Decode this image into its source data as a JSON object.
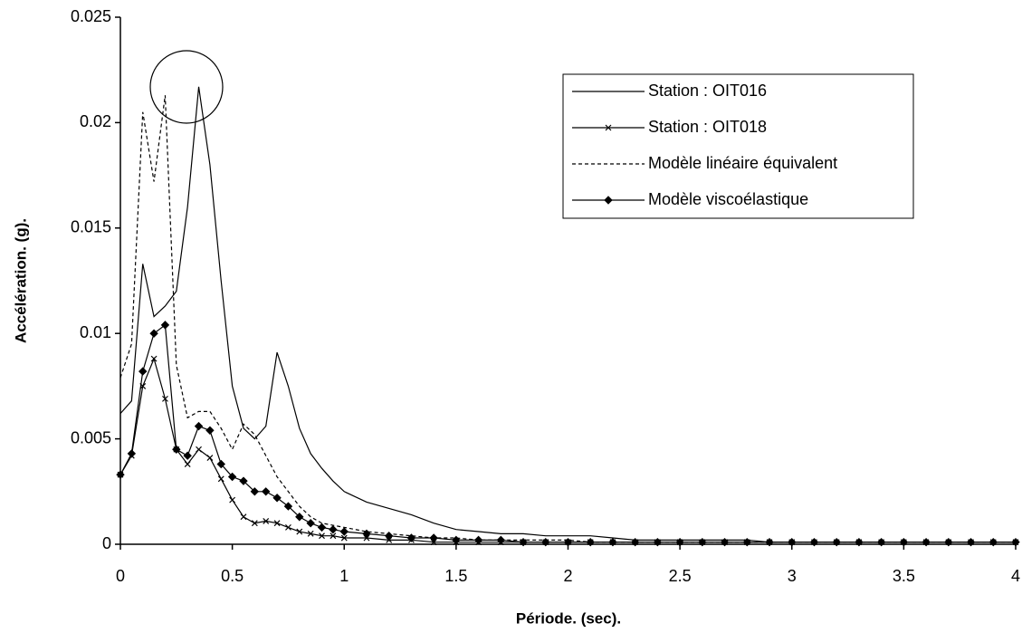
{
  "chart_data": {
    "type": "line",
    "xlabel": "Période. (sec).",
    "ylabel": "Accélération. (g).",
    "x": [
      0,
      0.05,
      0.1,
      0.15,
      0.2,
      0.25,
      0.3,
      0.35,
      0.4,
      0.45,
      0.5,
      0.55,
      0.6,
      0.65,
      0.7,
      0.75,
      0.8,
      0.85,
      0.9,
      0.95,
      1.0,
      1.1,
      1.2,
      1.3,
      1.4,
      1.5,
      1.6,
      1.7,
      1.8,
      1.9,
      2.0,
      2.1,
      2.2,
      2.3,
      2.4,
      2.5,
      2.6,
      2.7,
      2.8,
      2.9,
      3.0,
      3.1,
      3.2,
      3.3,
      3.4,
      3.5,
      3.6,
      3.7,
      3.8,
      3.9,
      4.0
    ],
    "xlim": [
      0,
      4
    ],
    "xticks": [
      0,
      0.5,
      1,
      1.5,
      2,
      2.5,
      3,
      3.5,
      4
    ],
    "ylim": [
      0,
      0.025
    ],
    "yticks": [
      0,
      0.005,
      0.01,
      0.015,
      0.02,
      0.025
    ],
    "grid": false,
    "legend": "upper right",
    "series": [
      {
        "name": "Station : OIT016",
        "color": "#000000",
        "line_style": "solid",
        "marker": "none",
        "values": [
          0.0062,
          0.0068,
          0.0133,
          0.0108,
          0.0113,
          0.012,
          0.016,
          0.0217,
          0.018,
          0.0125,
          0.0075,
          0.0055,
          0.005,
          0.0056,
          0.0091,
          0.0075,
          0.0055,
          0.0043,
          0.0036,
          0.003,
          0.0025,
          0.002,
          0.0017,
          0.0014,
          0.001,
          0.0007,
          0.0006,
          0.0005,
          0.0005,
          0.0004,
          0.0004,
          0.0004,
          0.0003,
          0.0002,
          0.0002,
          0.0002,
          0.0002,
          0.0002,
          0.0002,
          0.0001,
          0.0001,
          0.0001,
          0.0001,
          0.0001,
          0.0001,
          0.0001,
          0.0001,
          0.0001,
          0.0001,
          0.0001,
          0.0001
        ]
      },
      {
        "name": "Station : OIT018",
        "color": "#000000",
        "line_style": "solid",
        "marker": "x",
        "values": [
          0.0033,
          0.0042,
          0.0075,
          0.0088,
          0.0069,
          0.0045,
          0.0038,
          0.0045,
          0.0041,
          0.0031,
          0.0021,
          0.0013,
          0.001,
          0.0011,
          0.001,
          0.0008,
          0.0006,
          0.0005,
          0.0004,
          0.0004,
          0.0003,
          0.0003,
          0.0002,
          0.0002,
          0.0001,
          0.0001,
          0.0001,
          0.0001,
          0.0001,
          0.0001,
          0.0001,
          0.0001,
          0.0001,
          0.0001,
          0.0001,
          0.0001,
          0.0001,
          0.0001,
          0.0001,
          0.0001,
          0.0001,
          0.0001,
          0.0001,
          0.0001,
          0.0001,
          0.0001,
          0.0001,
          0.0001,
          0.0001,
          0.0001,
          0.0001
        ]
      },
      {
        "name": "Modèle linéaire équivalent",
        "color": "#000000",
        "line_style": "dashed",
        "marker": "none",
        "values": [
          0.0079,
          0.0095,
          0.0205,
          0.0172,
          0.0213,
          0.0085,
          0.006,
          0.0063,
          0.0063,
          0.0055,
          0.0045,
          0.0057,
          0.0052,
          0.0042,
          0.0032,
          0.0025,
          0.0018,
          0.0013,
          0.001,
          0.0009,
          0.0008,
          0.0006,
          0.0005,
          0.0004,
          0.0003,
          0.0003,
          0.0002,
          0.0002,
          0.0002,
          0.0002,
          0.0002,
          0.0001,
          0.0001,
          0.0001,
          0.0001,
          0.0001,
          0.0001,
          0.0001,
          0.0001,
          0.0001,
          0.0001,
          0.0001,
          0.0001,
          0.0001,
          0.0001,
          0.0001,
          0.0001,
          0.0001,
          0.0001,
          0.0001,
          0.0001
        ]
      },
      {
        "name": "Modèle viscoélastique",
        "color": "#000000",
        "line_style": "solid",
        "marker": "diamond",
        "values": [
          0.0033,
          0.0043,
          0.0082,
          0.01,
          0.0104,
          0.0045,
          0.0042,
          0.0056,
          0.0054,
          0.0038,
          0.0032,
          0.003,
          0.0025,
          0.0025,
          0.0022,
          0.0018,
          0.0013,
          0.001,
          0.0008,
          0.0007,
          0.0006,
          0.0005,
          0.0004,
          0.0003,
          0.0003,
          0.0002,
          0.0002,
          0.0002,
          0.0001,
          0.0001,
          0.0001,
          0.0001,
          0.0001,
          0.0001,
          0.0001,
          0.0001,
          0.0001,
          0.0001,
          0.0001,
          0.0001,
          0.0001,
          0.0001,
          0.0001,
          0.0001,
          0.0001,
          0.0001,
          0.0001,
          0.0001,
          0.0001,
          0.0001,
          0.0001
        ]
      }
    ]
  }
}
